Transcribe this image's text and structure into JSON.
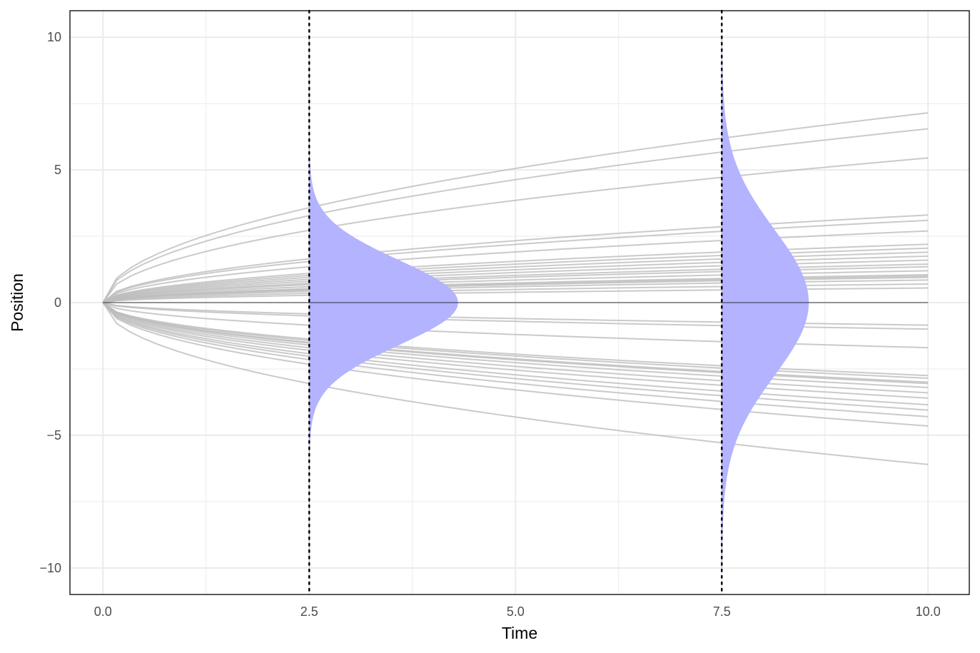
{
  "chart_data": {
    "type": "line",
    "xlabel": "Time",
    "ylabel": "Position",
    "xlim": [
      -0.4,
      10.5
    ],
    "ylim": [
      -11,
      11
    ],
    "x_ticks": [
      0,
      2.5,
      5,
      7.5,
      10
    ],
    "x_tick_labels": [
      "0.0",
      "2.5",
      "5.0",
      "7.5",
      "10.0"
    ],
    "y_ticks": [
      -10,
      -5,
      0,
      5,
      10
    ],
    "y_tick_labels": [
      "−10",
      "−5",
      "0",
      "5",
      "10"
    ],
    "grid": true,
    "legend": "none",
    "colors": {
      "trajectory": "#bdbdbd",
      "density_fill": "#b3b3ff",
      "vertical_marker": "#000000",
      "zero_line": "#000000",
      "grid": "#ebebeb"
    },
    "trajectories": {
      "x_start": 0,
      "x_end": 10,
      "shape": "sqrt",
      "final_values": [
        7.15,
        6.55,
        5.45,
        3.3,
        3.1,
        2.7,
        2.2,
        2.05,
        1.9,
        1.75,
        1.6,
        1.45,
        1.35,
        1.2,
        1.05,
        1.0,
        0.95,
        0.85,
        0.7,
        0.55,
        -0.85,
        -1.0,
        -1.7,
        -2.75,
        -2.85,
        -3.0,
        -3.05,
        -3.2,
        -3.4,
        -3.6,
        -3.85,
        -4.05,
        -4.3,
        -4.65,
        -6.1
      ]
    },
    "vertical_markers": [
      2.5,
      7.5
    ],
    "densities": [
      {
        "time": 2.5,
        "mean": 0,
        "sd": 1.58,
        "peak_width": 1.8,
        "y_range": [
          -10,
          10
        ]
      },
      {
        "time": 7.5,
        "mean": 0,
        "sd": 2.74,
        "peak_width": 1.05,
        "y_range": [
          -10,
          10
        ]
      }
    ],
    "zero_line": {
      "y": 0,
      "x_range": [
        0,
        10
      ]
    }
  }
}
